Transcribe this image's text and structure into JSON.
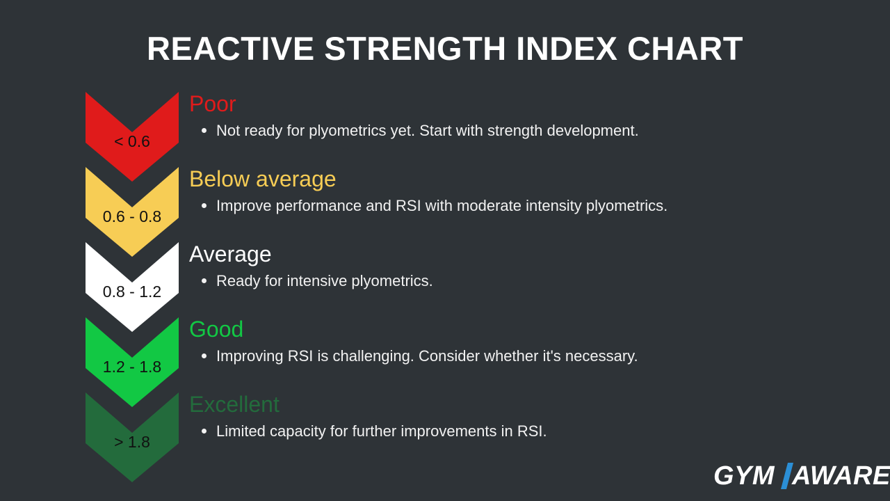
{
  "title": "REACTIVE STRENGTH INDEX CHART",
  "tiers": [
    {
      "range": "< 0.6",
      "label": "Poor",
      "description": "Not ready for plyometrics yet. Start with strength development.",
      "color": "#e01b1b"
    },
    {
      "range": "0.6 - 0.8",
      "label": "Below average",
      "description": "Improve performance and RSI with moderate intensity plyometrics.",
      "color": "#f7cd55"
    },
    {
      "range": "0.8 - 1.2",
      "label": "Average",
      "description": "Ready for intensive plyometrics.",
      "color": "#ffffff"
    },
    {
      "range": "1.2 - 1.8",
      "label": "Good",
      "description": "Improving RSI is challenging. Consider whether it's necessary.",
      "color": "#12c844"
    },
    {
      "range": "> 1.8",
      "label": "Excellent",
      "description": "Limited capacity for further improvements in RSI.",
      "color": "#236b3c"
    }
  ],
  "logo": {
    "text_left": "GYM",
    "text_right": "AWARE",
    "accent_color": "#2b8fd6"
  }
}
